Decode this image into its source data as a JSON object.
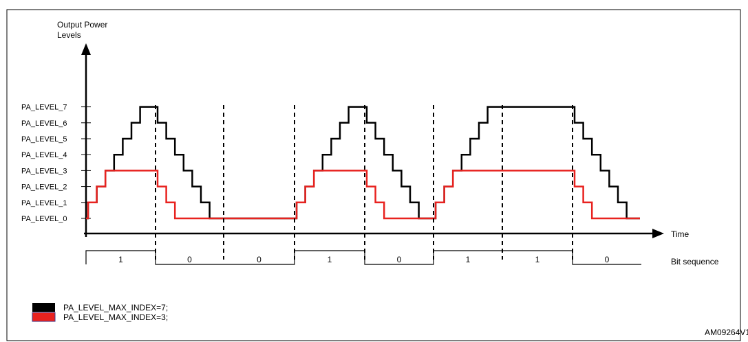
{
  "figure_title": "",
  "y_axis_label": [
    "Output Power",
    "Levels"
  ],
  "x_axis_label": "Time",
  "bit_sequence_label": "Bit sequence",
  "levels": [
    "PA_LEVEL_0",
    "PA_LEVEL_1",
    "PA_LEVEL_2",
    "PA_LEVEL_3",
    "PA_LEVEL_4",
    "PA_LEVEL_5",
    "PA_LEVEL_6",
    "PA_LEVEL_7"
  ],
  "bits": [
    "1",
    "0",
    "0",
    "1",
    "0",
    "1",
    "1",
    "0"
  ],
  "legend": [
    {
      "label": "PA_LEVEL_MAX_INDEX=7;",
      "color": "#000000"
    },
    {
      "label": "PA_LEVEL_MAX_INDEX=3;",
      "color": "#e8221f"
    }
  ],
  "figure_id": "AM09264V1",
  "colors": {
    "black_trace": "#000000",
    "red_trace": "#e8221f",
    "red_legend_border": "#3a3a8c"
  }
}
